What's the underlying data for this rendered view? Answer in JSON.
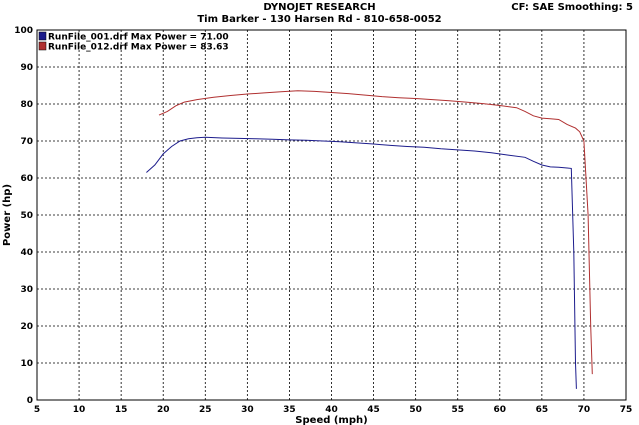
{
  "header": {
    "title": "DYNOJET RESEARCH",
    "subtitle": "Tim Barker - 130 Harsen Rd - 810-658-0052",
    "cf_info": "CF: SAE  Smoothing: 5"
  },
  "chart_data": {
    "type": "line",
    "xlabel": "Speed (mph)",
    "ylabel": "Power (hp)",
    "xlim": [
      5,
      75
    ],
    "ylim": [
      0,
      100
    ],
    "xticks": [
      "5",
      "10",
      "15",
      "20",
      "25",
      "30",
      "35",
      "40",
      "45",
      "50",
      "55",
      "60",
      "65",
      "70",
      "75"
    ],
    "yticks": [
      "0",
      "10",
      "20",
      "30",
      "40",
      "50",
      "60",
      "70",
      "80",
      "90",
      "100"
    ],
    "grid": true,
    "legend_position": "top-left",
    "series": [
      {
        "name": "RunFile_001.drf Max Power = 71.00",
        "color": "#1c1c8c",
        "x": [
          18,
          19,
          20,
          21,
          22,
          23,
          24,
          25,
          27,
          29,
          31,
          33,
          35,
          37,
          39,
          41,
          43,
          45,
          47,
          49,
          51,
          53,
          55,
          57,
          59,
          61,
          63,
          64,
          65,
          66,
          67,
          68,
          68.5,
          68.8,
          69.0,
          69.1
        ],
        "y": [
          61.5,
          63.5,
          66.5,
          68.5,
          70,
          70.6,
          70.9,
          71.0,
          70.8,
          70.7,
          70.6,
          70.5,
          70.3,
          70.2,
          70.0,
          69.8,
          69.5,
          69.2,
          68.8,
          68.5,
          68.3,
          67.9,
          67.6,
          67.3,
          66.8,
          66.2,
          65.6,
          64.5,
          63.5,
          63.0,
          62.9,
          62.7,
          62.6,
          40,
          10,
          3
        ]
      },
      {
        "name": "RunFile_012.drf Max Power = 83.63",
        "color": "#b03030",
        "x": [
          19.5,
          20.5,
          21.5,
          22.5,
          24,
          26,
          28,
          30,
          32,
          34,
          36,
          38,
          40,
          42,
          44,
          46,
          48,
          50,
          52,
          54,
          56,
          58,
          60,
          62,
          63,
          64,
          65,
          66,
          67,
          68,
          69,
          69.5,
          70,
          70.5,
          70.8,
          71.0
        ],
        "y": [
          77,
          78,
          79.5,
          80.5,
          81.2,
          81.8,
          82.3,
          82.7,
          83.0,
          83.3,
          83.6,
          83.4,
          83.1,
          82.8,
          82.4,
          82.0,
          81.7,
          81.5,
          81.2,
          80.9,
          80.5,
          80.1,
          79.6,
          79.0,
          78.0,
          76.8,
          76.2,
          76.0,
          75.8,
          74.5,
          73.5,
          72.5,
          70,
          50,
          20,
          7
        ]
      }
    ]
  }
}
